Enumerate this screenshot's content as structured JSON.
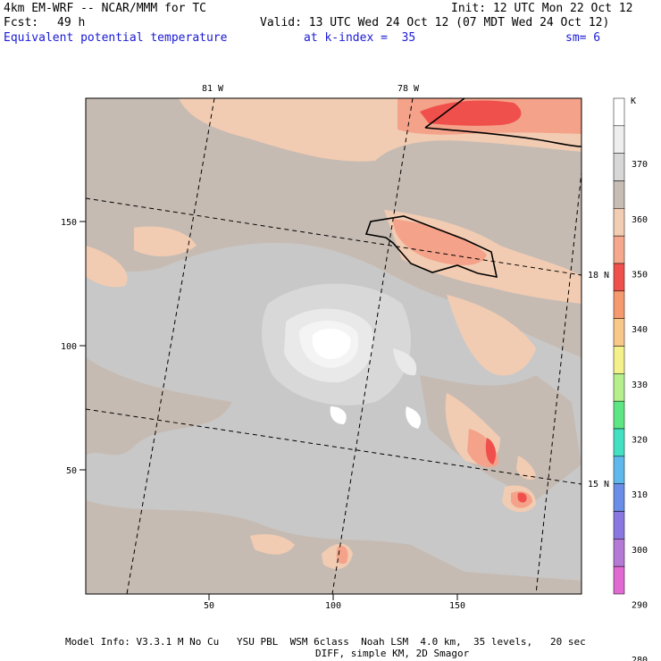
{
  "header": {
    "model": "4km EM-WRF -- NCAR/MMM for TC",
    "init": "Init: 12 UTC Mon 22 Oct 12",
    "fcst_label": "Fcst:",
    "fcst_value": "49 h",
    "valid": "Valid: 13 UTC Wed 24 Oct 12 (07 MDT Wed 24 Oct 12)",
    "field": "Equivalent potential temperature",
    "kindex": "at k-index =  35",
    "sm": "sm= 6"
  },
  "map": {
    "lon_labels": [
      "81 W",
      "78 W"
    ],
    "lat_labels": [
      "18 N",
      "15 N"
    ],
    "x_ticks": [
      "50",
      "100",
      "150"
    ],
    "y_ticks": [
      "150",
      "100",
      "50"
    ]
  },
  "colorbar": {
    "unit": "K",
    "levels": [
      "370",
      "360",
      "350",
      "340",
      "330",
      "320",
      "310",
      "300",
      "290",
      "280"
    ],
    "colors": [
      "#ffffff",
      "#eeeeee",
      "#d7d7d7",
      "#c8bdb5",
      "#f2cdb3",
      "#f5a88c",
      "#f0504c",
      "#f59a6e",
      "#f7c888",
      "#f4f08a",
      "#b6f08c",
      "#5ee684",
      "#44e0c4",
      "#5fb8ec",
      "#6a8de8",
      "#8a78e0",
      "#b47ad6",
      "#e06ad2"
    ]
  },
  "footer": {
    "line1": "Model Info: V3.3.1 M No Cu   YSU PBL  WSM 6class  Noah LSM  4.0 km,  35 levels,   20 sec",
    "line2": "DIFF, simple KM, 2D Smagor"
  }
}
